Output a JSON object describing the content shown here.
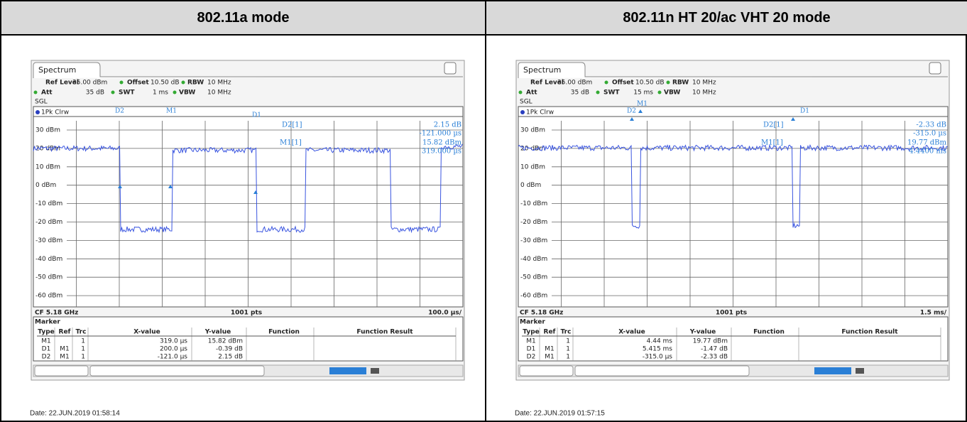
{
  "table": {
    "headers": [
      "802.11a mode",
      "802.11n HT 20/ac VHT 20 mode"
    ]
  },
  "panels": [
    {
      "tab": "Spectrum",
      "settings": [
        {
          "label": "Ref Level",
          "value": "35.00 dBm"
        },
        {
          "label": "Offset",
          "value": "10.50 dB"
        },
        {
          "label": "RBW",
          "value": "10 MHz"
        },
        {
          "label": "Att",
          "value": "35 dB"
        },
        {
          "label": "SWT",
          "value": "1 ms"
        },
        {
          "label": "VBW",
          "value": "10 MHz"
        }
      ],
      "mode": "SGL",
      "trace_label": "1Pk Clrw",
      "y_labels": [
        "30 dBm",
        "20 dBm",
        "10 dBm",
        "0 dBm",
        "-10 dBm",
        "-20 dBm",
        "-30 dBm",
        "-40 dBm",
        "-50 dBm",
        "-60 dBm"
      ],
      "readouts": [
        {
          "label": "D2[1]",
          "lines": [
            "2.15 dB",
            "-121.000 µs"
          ]
        },
        {
          "label": "M1[1]",
          "lines": [
            "15.82 dBm",
            "319.000 µs"
          ]
        }
      ],
      "trace_markers": [
        "D2",
        "M1",
        "D1"
      ],
      "footer": {
        "left": "CF 5.18 GHz",
        "center": "1001 pts",
        "right": "100.0 µs/"
      },
      "marker_table": {
        "title": "Marker",
        "headers": [
          "Type",
          "Ref",
          "Trc",
          "X-value",
          "Y-value",
          "Function",
          "Function Result"
        ],
        "rows": [
          {
            "type": "M1",
            "trc": "1",
            "x": "319.0 µs",
            "y": "15.82 dBm"
          },
          {
            "type": "D1",
            "ref": "M1",
            "trc": "1",
            "x": "200.0 µs",
            "y": "-0.39 dB"
          },
          {
            "type": "D2",
            "ref": "M1",
            "trc": "1",
            "x": "-121.0 µs",
            "y": "2.15 dB"
          }
        ]
      },
      "date": "Date: 22.JUN.2019 01:58:14"
    },
    {
      "tab": "Spectrum",
      "settings": [
        {
          "label": "Ref Level",
          "value": "35.00 dBm"
        },
        {
          "label": "Offset",
          "value": "10.50 dB"
        },
        {
          "label": "RBW",
          "value": "10 MHz"
        },
        {
          "label": "Att",
          "value": "35 dB"
        },
        {
          "label": "SWT",
          "value": "15 ms"
        },
        {
          "label": "VBW",
          "value": "10 MHz"
        }
      ],
      "mode": "SGL",
      "trace_label": "1Pk Clrw",
      "y_labels": [
        "30 dBm",
        "20 dBm",
        "10 dBm",
        "0 dBm",
        "-10 dBm",
        "-20 dBm",
        "-30 dBm",
        "-40 dBm",
        "-50 dBm",
        "-60 dBm"
      ],
      "readouts": [
        {
          "label": "D2[1]",
          "lines": [
            "-2.33 dB",
            "-315.0 µs"
          ]
        },
        {
          "label": "M1[1]",
          "lines": [
            "19.77 dBm",
            "4.4400 ms"
          ]
        }
      ],
      "trace_markers": [
        "M1",
        "D2",
        "D1"
      ],
      "footer": {
        "left": "CF 5.18 GHz",
        "center": "1001 pts",
        "right": "1.5 ms/"
      },
      "marker_table": {
        "title": "Marker",
        "headers": [
          "Type",
          "Ref",
          "Trc",
          "X-value",
          "Y-value",
          "Function",
          "Function Result"
        ],
        "rows": [
          {
            "type": "M1",
            "trc": "1",
            "x": "4.44 ms",
            "y": "19.77 dBm"
          },
          {
            "type": "D1",
            "ref": "M1",
            "trc": "1",
            "x": "5.415 ms",
            "y": "-1.47 dB"
          },
          {
            "type": "D2",
            "ref": "M1",
            "trc": "1",
            "x": "-315.0 µs",
            "y": "-2.33 dB"
          }
        ]
      },
      "date": "Date: 22.JUN.2019 01:57:15"
    }
  ]
}
